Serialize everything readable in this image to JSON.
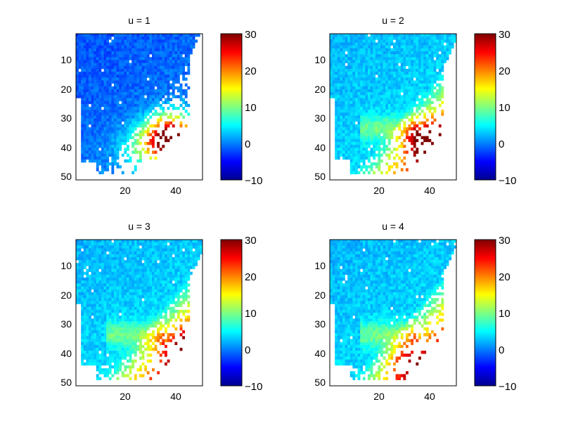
{
  "figure": {
    "colormap": "jet",
    "background": "#ffffff",
    "missing_color": "#ffffff"
  },
  "chart_data": [
    {
      "type": "heatmap",
      "title": "u = 1",
      "grid_size": [
        50,
        50
      ],
      "xlim": [
        0.5,
        50.5
      ],
      "ylim": [
        50.5,
        0.5
      ],
      "y_reversed": true,
      "xticks": [
        20,
        40
      ],
      "yticks": [
        10,
        20,
        30,
        40,
        50
      ],
      "clim": [
        -10,
        30
      ],
      "colorbar_ticks": [
        30,
        20,
        10,
        0,
        -10
      ],
      "xlabel": "",
      "ylabel": "",
      "field_model": {
        "region_cells": 1290,
        "value_min": -3,
        "value_max": 31,
        "peak_cell": [
          40,
          36
        ],
        "note_values": "smooth field: ~-3 to 2 in upper-left bulk, rising to 25-31 near x 35-44, y 32-42"
      }
    },
    {
      "type": "heatmap",
      "title": "u = 2",
      "grid_size": [
        50,
        50
      ],
      "xlim": [
        0.5,
        50.5
      ],
      "ylim": [
        50.5,
        0.5
      ],
      "y_reversed": true,
      "xticks": [
        20,
        40
      ],
      "yticks": [
        10,
        20,
        30,
        40,
        50
      ],
      "clim": [
        -10,
        30
      ],
      "colorbar_ticks": [
        30,
        20,
        10,
        0,
        -10
      ],
      "xlabel": "",
      "ylabel": "",
      "field_model": {
        "region_cells": 1300,
        "value_min": 0,
        "value_max": 27,
        "peak_cell": [
          40,
          38
        ],
        "note_values": "bulk ~2-4, lower-right rim 10-27"
      }
    },
    {
      "type": "heatmap",
      "title": "u = 3",
      "grid_size": [
        50,
        50
      ],
      "xlim": [
        0.5,
        50.5
      ],
      "ylim": [
        50.5,
        0.5
      ],
      "y_reversed": true,
      "xticks": [
        20,
        40
      ],
      "yticks": [
        10,
        20,
        30,
        40,
        50
      ],
      "clim": [
        -10,
        30
      ],
      "colorbar_ticks": [
        30,
        20,
        10,
        0,
        -10
      ],
      "xlabel": "",
      "ylabel": "",
      "field_model": {
        "region_cells": 1310,
        "value_min": 1,
        "value_max": 24,
        "peak_cell": [
          44,
          39
        ],
        "note_values": "bulk ~3-5, rim 10-24"
      }
    },
    {
      "type": "heatmap",
      "title": "u = 4",
      "grid_size": [
        50,
        50
      ],
      "xlim": [
        0.5,
        50.5
      ],
      "ylim": [
        50.5,
        0.5
      ],
      "y_reversed": true,
      "xticks": [
        20,
        40
      ],
      "yticks": [
        10,
        20,
        30,
        40,
        50
      ],
      "clim": [
        -10,
        30
      ],
      "colorbar_ticks": [
        30,
        20,
        10,
        0,
        -10
      ],
      "xlabel": "",
      "ylabel": "",
      "field_model": {
        "region_cells": 1290,
        "value_min": 1,
        "value_max": 20,
        "peak_cell": [
          32,
          43
        ],
        "note_values": "bulk ~3-5, lower rim 10-20"
      }
    }
  ]
}
